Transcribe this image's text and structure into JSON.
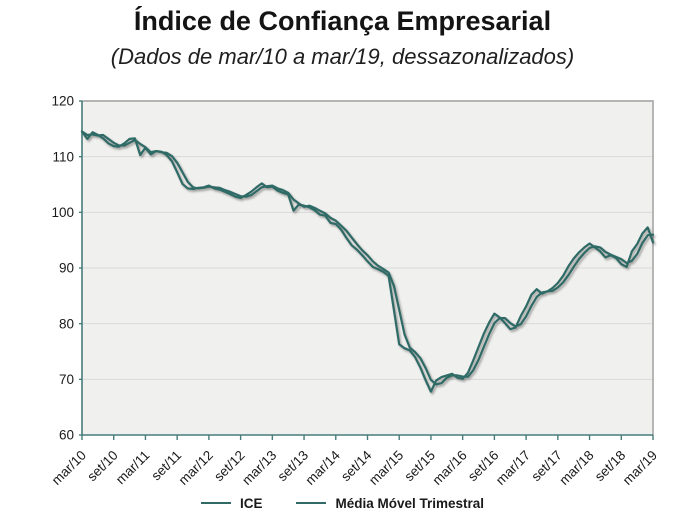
{
  "header": {
    "title": "Índice de Confiança Empresarial",
    "subtitle": "(Dados de mar/10 a mar/19, dessazonalizados)"
  },
  "colors": {
    "series_line": "#2F6A66",
    "axis_line": "#477C7A",
    "plot_background": "#F0F0EE",
    "gridline": "#D9D9D9",
    "plot_border": "#ABABAB",
    "text": "#1A1A1A"
  },
  "chart_data": {
    "type": "line",
    "title": "Índice de Confiança Empresarial",
    "subtitle": "(Dados de mar/10 a mar/19, dessazonalizados)",
    "x_unit": "month",
    "x_start": "mar/10",
    "x_end": "mar/19",
    "n_points": 109,
    "points_per_tick": 6,
    "x_tick_labels": [
      "mar/10",
      "set/10",
      "mar/11",
      "set/11",
      "mar/12",
      "set/12",
      "mar/13",
      "set/13",
      "mar/14",
      "set/14",
      "mar/15",
      "set/15",
      "mar/16",
      "set/16",
      "mar/17",
      "set/17",
      "mar/18",
      "set/18",
      "mar/19"
    ],
    "ylim": [
      60,
      120
    ],
    "y_ticks": [
      60,
      70,
      80,
      90,
      100,
      110,
      120
    ],
    "grid": "horizontal",
    "legend_position": "bottom",
    "series": [
      {
        "name": "ICE",
        "values": [
          114.5,
          113.2,
          114.4,
          113.9,
          113.3,
          112.4,
          111.9,
          111.8,
          112.4,
          113.2,
          113.3,
          110.3,
          111.6,
          110.4,
          111.0,
          110.9,
          110.3,
          109.2,
          107.2,
          105.1,
          104.3,
          104.2,
          104.4,
          104.5,
          104.8,
          104.3,
          104.1,
          103.7,
          103.3,
          102.8,
          102.6,
          103.1,
          103.7,
          104.5,
          105.2,
          104.5,
          104.6,
          103.9,
          103.5,
          103.2,
          100.3,
          101.4,
          101.2,
          100.9,
          100.4,
          99.6,
          99.4,
          98.1,
          97.9,
          96.9,
          95.4,
          94.1,
          93.3,
          92.3,
          91.2,
          90.2,
          89.8,
          89.3,
          88.6,
          82.5,
          76.3,
          75.6,
          75.2,
          74.0,
          72.1,
          69.8,
          67.8,
          69.8,
          70.4,
          70.7,
          71.0,
          70.3,
          70.1,
          71.2,
          73.4,
          75.8,
          78.2,
          80.2,
          81.8,
          81.1,
          80.1,
          79.0,
          79.3,
          81.4,
          83.1,
          85.2,
          86.2,
          85.4,
          85.8,
          86.4,
          87.3,
          88.6,
          90.3,
          91.7,
          92.8,
          93.7,
          94.4,
          93.7,
          93.0,
          91.9,
          92.3,
          91.8,
          90.7,
          90.2,
          93.0,
          94.3,
          96.2,
          97.3,
          94.6
        ]
      },
      {
        "name": "Média Móvel Trimestral",
        "values": [
          114.5,
          113.9,
          114.0,
          113.8,
          113.9,
          113.2,
          112.5,
          112.0,
          112.0,
          112.5,
          113.0,
          112.3,
          111.7,
          110.8,
          111.0,
          110.8,
          110.7,
          110.1,
          108.9,
          107.2,
          105.5,
          104.5,
          104.3,
          104.4,
          104.6,
          104.5,
          104.4,
          104.0,
          103.7,
          103.3,
          102.9,
          102.8,
          103.1,
          103.8,
          104.5,
          104.7,
          104.8,
          104.3,
          104.0,
          103.5,
          102.3,
          101.6,
          101.0,
          101.2,
          100.8,
          100.3,
          99.8,
          99.0,
          98.5,
          97.6,
          96.7,
          95.5,
          94.3,
          93.2,
          92.3,
          91.2,
          90.4,
          89.8,
          89.2,
          86.8,
          82.5,
          78.1,
          75.7,
          74.9,
          73.8,
          72.0,
          69.9,
          69.1,
          69.3,
          70.3,
          70.7,
          70.7,
          70.5,
          70.5,
          71.6,
          73.5,
          75.8,
          78.1,
          80.1,
          81.0,
          81.0,
          80.1,
          79.5,
          79.9,
          81.3,
          83.2,
          84.8,
          85.6,
          85.8,
          85.9,
          86.5,
          87.4,
          88.7,
          90.2,
          91.6,
          92.7,
          93.6,
          93.9,
          93.7,
          92.9,
          92.4,
          92.0,
          91.6,
          90.9,
          91.3,
          92.5,
          94.5,
          95.9,
          96.0
        ]
      }
    ]
  }
}
